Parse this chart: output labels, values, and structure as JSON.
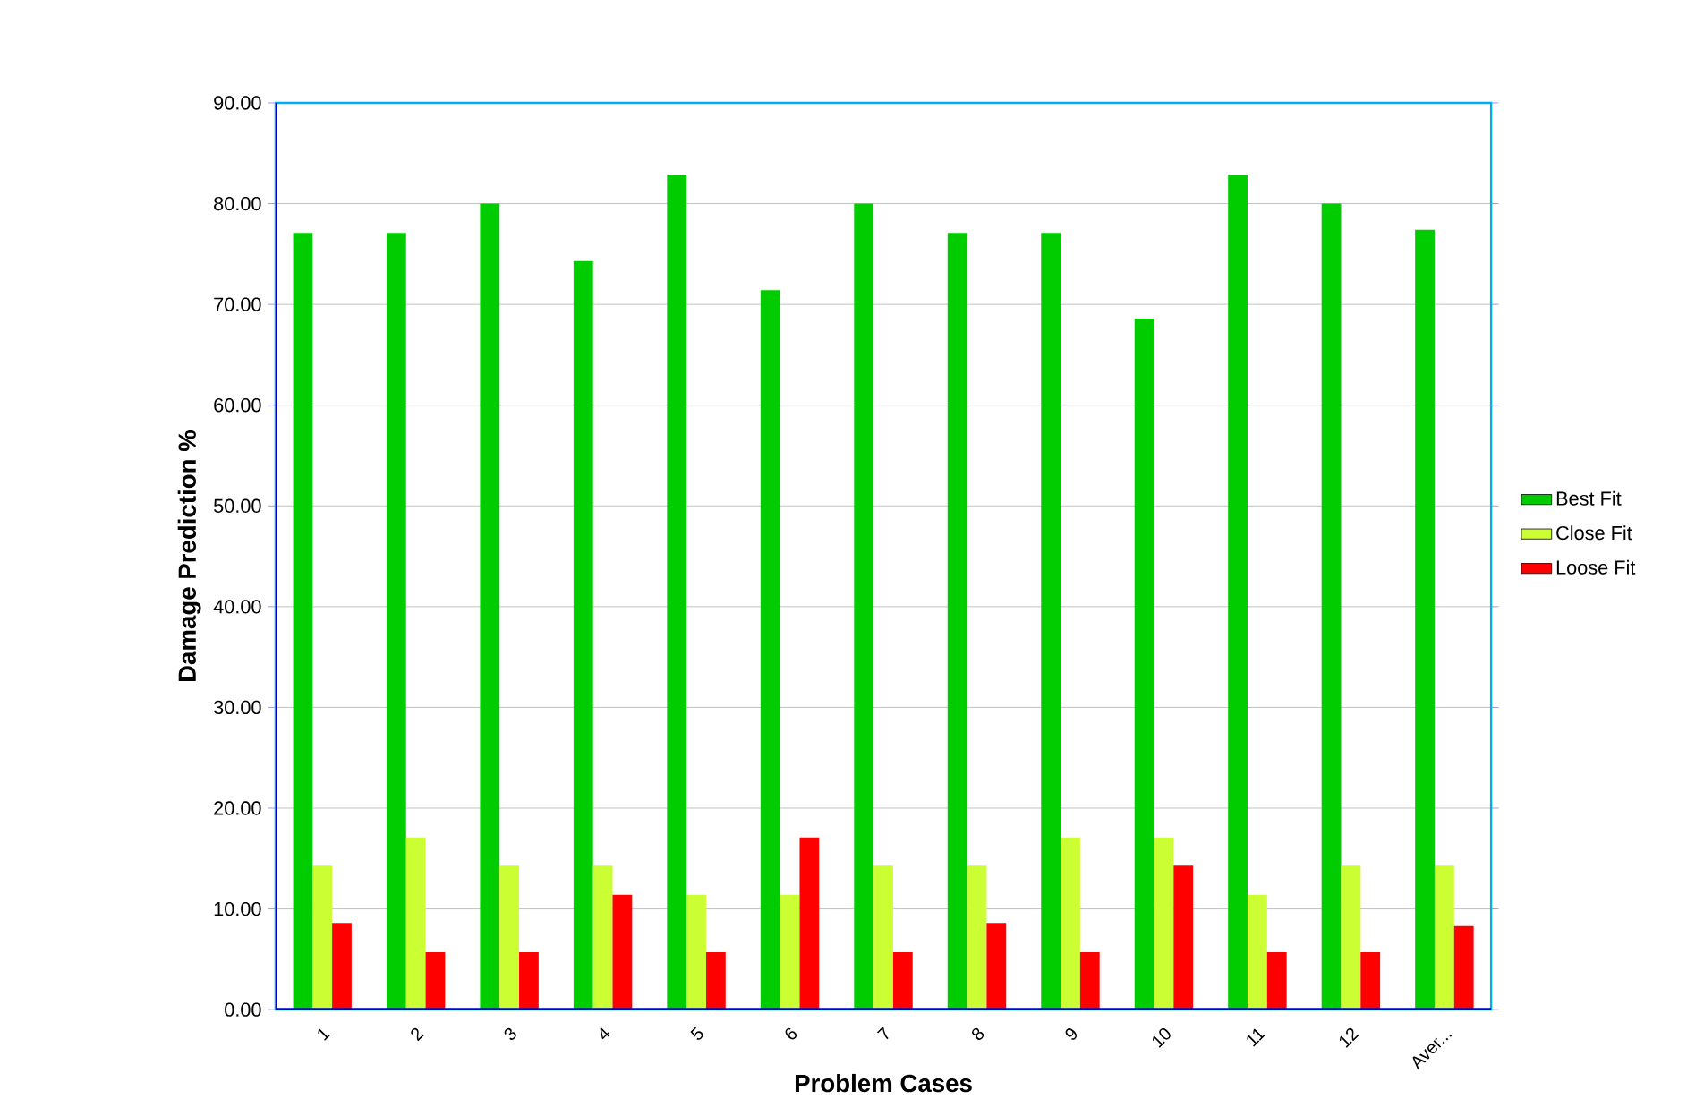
{
  "chart_data": {
    "type": "bar",
    "xlabel": "Problem Cases",
    "ylabel": "Damage Prediction %",
    "categories": [
      "1",
      "2",
      "3",
      "4",
      "5",
      "6",
      "7",
      "8",
      "9",
      "10",
      "11",
      "12",
      "Aver..."
    ],
    "series": [
      {
        "name": "Best Fit",
        "color": "#00cc00",
        "values": [
          77.1,
          77.1,
          80.0,
          74.3,
          82.9,
          71.4,
          80.0,
          77.1,
          77.1,
          68.6,
          82.9,
          80.0,
          77.4
        ]
      },
      {
        "name": "Close Fit",
        "color": "#ccff33",
        "values": [
          14.3,
          17.1,
          14.3,
          14.3,
          11.4,
          11.4,
          14.3,
          14.3,
          17.1,
          17.1,
          11.4,
          14.3,
          14.3
        ]
      },
      {
        "name": "Loose Fit",
        "color": "#ff0000",
        "values": [
          8.6,
          5.7,
          5.7,
          11.4,
          5.7,
          17.1,
          5.7,
          8.6,
          5.7,
          14.3,
          5.7,
          5.7,
          8.3
        ]
      }
    ],
    "ylim": [
      0,
      90
    ],
    "yticks": [
      {
        "value": 0,
        "label": "0.00"
      },
      {
        "value": 10,
        "label": "10.00"
      },
      {
        "value": 20,
        "label": "20.00"
      },
      {
        "value": 30,
        "label": "30.00"
      },
      {
        "value": 40,
        "label": "40.00"
      },
      {
        "value": 50,
        "label": "50.00"
      },
      {
        "value": 60,
        "label": "60.00"
      },
      {
        "value": 70,
        "label": "70.00"
      },
      {
        "value": 80,
        "label": "80.00"
      },
      {
        "value": 90,
        "label": "90.00"
      }
    ],
    "grid": "y",
    "legend": "right"
  }
}
